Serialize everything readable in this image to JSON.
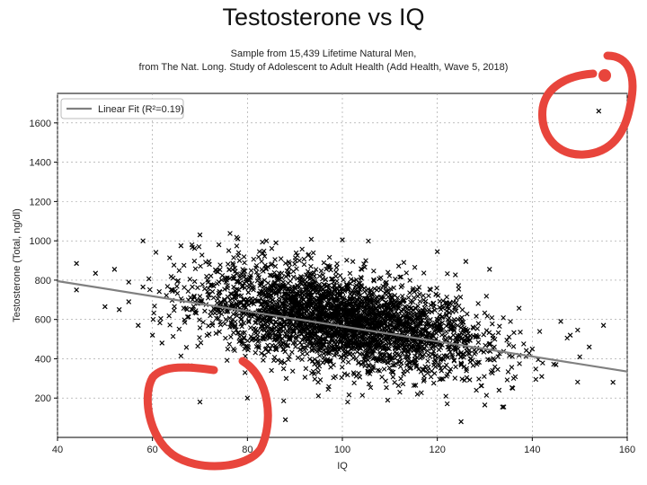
{
  "chart_data": {
    "type": "scatter",
    "title": "Testosterone vs IQ",
    "subtitle_lines": [
      "Sample from 15,439 Lifetime Natural Men,",
      "from The Nat. Long. Study of Adolescent to Adult Health (Add Health, Wave 5, 2018)"
    ],
    "xlabel": "IQ",
    "ylabel": "Testosterone (Total, ng/dl)",
    "xlim": [
      40,
      160
    ],
    "ylim": [
      0,
      1750
    ],
    "xticks": [
      40,
      60,
      80,
      100,
      120,
      140,
      160
    ],
    "yticks": [
      200,
      400,
      600,
      800,
      1000,
      1200,
      1400,
      1600
    ],
    "grid": true,
    "legend": {
      "position": "top-left",
      "entries": [
        "Linear Fit (R²=0.19)"
      ]
    },
    "marker": "x",
    "point_color": "#000000",
    "fit_color": "#808080",
    "fit_line": {
      "x": [
        40,
        160
      ],
      "y": [
        795,
        335
      ]
    },
    "dense_cloud": {
      "x_range": [
        58,
        152
      ],
      "y_center_at_iq100": 590,
      "y_spread": 120,
      "slope_per_iq": -3.8
    },
    "points": [
      [
        44,
        885
      ],
      [
        48,
        835
      ],
      [
        44,
        750
      ],
      [
        52,
        855
      ],
      [
        55,
        790
      ],
      [
        58,
        765
      ],
      [
        53,
        650
      ],
      [
        55,
        690
      ],
      [
        50,
        665
      ],
      [
        57,
        570
      ],
      [
        60,
        520
      ],
      [
        62,
        480
      ],
      [
        58,
        1000
      ],
      [
        66,
        975
      ],
      [
        70,
        1030
      ],
      [
        74,
        980
      ],
      [
        78,
        1010
      ],
      [
        84,
        1000
      ],
      [
        86,
        990
      ],
      [
        100,
        1005
      ],
      [
        120,
        945
      ],
      [
        126,
        895
      ],
      [
        131,
        855
      ],
      [
        70,
        180
      ],
      [
        80,
        200
      ],
      [
        88,
        90
      ],
      [
        125,
        80
      ],
      [
        130,
        165
      ],
      [
        133,
        240
      ],
      [
        146,
        590
      ],
      [
        148,
        520
      ],
      [
        152,
        460
      ],
      [
        155,
        570
      ],
      [
        157,
        280
      ],
      [
        150,
        410
      ],
      [
        145,
        370
      ],
      [
        142,
        310
      ],
      [
        140,
        450
      ],
      [
        154,
        1660
      ]
    ],
    "annotations": [
      {
        "shape": "hand-drawn circle",
        "color": "#e8453c",
        "target": "point at IQ≈154, T≈1660"
      },
      {
        "shape": "hand-drawn circle",
        "color": "#e8453c",
        "target": "points near IQ≈70, T≈180"
      }
    ]
  }
}
